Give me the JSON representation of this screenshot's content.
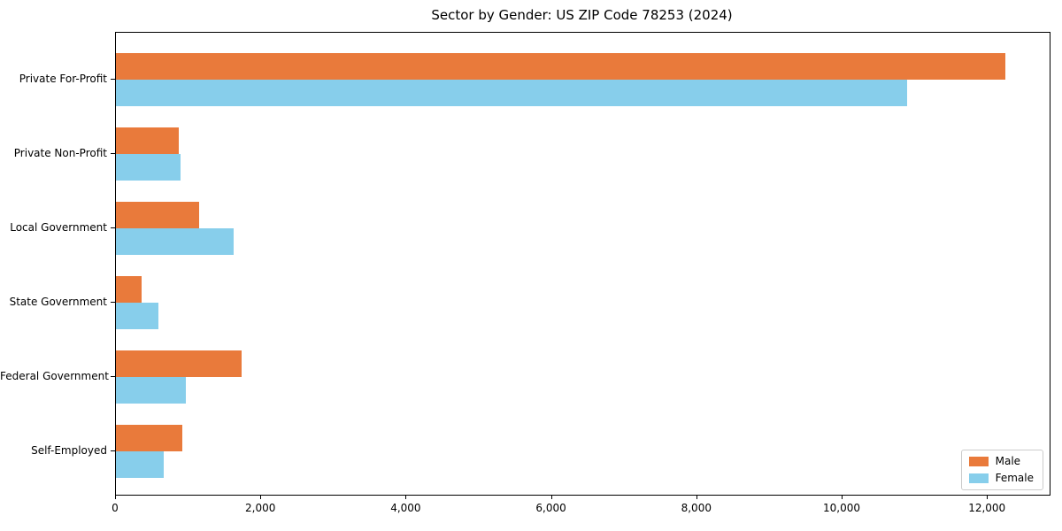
{
  "figure": {
    "background": "#ffffff",
    "spine_color": "#000000"
  },
  "chart_data": {
    "type": "bar",
    "orientation": "horizontal",
    "title": "Sector by Gender: US ZIP Code 78253 (2024)",
    "xlabel": "",
    "ylabel": "",
    "grid": false,
    "xlim": [
      0,
      12850
    ],
    "categories": [
      "Private For-Profit",
      "Private Non-Profit",
      "Local Government",
      "State Government",
      "Federal Government",
      "Self-Employed"
    ],
    "series": [
      {
        "name": "Male",
        "color": "#e97a3b",
        "values": [
          12240,
          870,
          1140,
          350,
          1730,
          910
        ]
      },
      {
        "name": "Female",
        "color": "#87ceeb",
        "values": [
          10890,
          890,
          1620,
          590,
          960,
          660
        ]
      }
    ],
    "xticks": [
      {
        "value": 0,
        "label": "0"
      },
      {
        "value": 2000,
        "label": "2,000"
      },
      {
        "value": 4000,
        "label": "4,000"
      },
      {
        "value": 6000,
        "label": "6,000"
      },
      {
        "value": 8000,
        "label": "8,000"
      },
      {
        "value": 10000,
        "label": "10,000"
      },
      {
        "value": 12000,
        "label": "12,000"
      }
    ],
    "legend": {
      "position": "lower right",
      "entries": [
        "Male",
        "Female"
      ]
    }
  }
}
